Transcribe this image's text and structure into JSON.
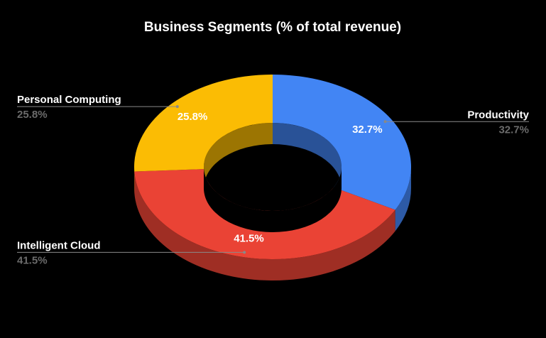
{
  "chart_data": {
    "type": "pie",
    "style": "3d-donut",
    "title": "Business Segments (% of total revenue)",
    "slices": [
      {
        "label": "Productivity",
        "value": 32.7,
        "display": "32.7%",
        "color": "#4285f4"
      },
      {
        "label": "Intelligent Cloud",
        "value": 41.5,
        "display": "41.5%",
        "color": "#ea4335"
      },
      {
        "label": "Personal Computing",
        "value": 25.8,
        "display": "25.8%",
        "color": "#fbbc04"
      }
    ],
    "legend": "callouts"
  }
}
